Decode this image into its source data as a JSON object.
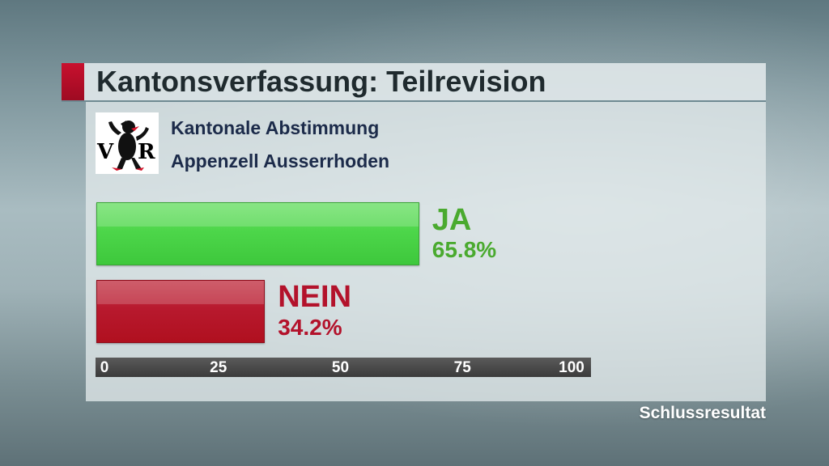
{
  "header": {
    "title": "Kantonsverfassung: Teilrevision"
  },
  "subtitle": {
    "line1": "Kantonale Abstimmung",
    "line2": "Appenzell Ausserrhoden"
  },
  "logo": {
    "letters_left": "V",
    "letters_right": "R",
    "icon": "bear-coat-of-arms-icon"
  },
  "chart_data": {
    "type": "bar",
    "orientation": "horizontal",
    "categories": [
      "JA",
      "NEIN"
    ],
    "values": [
      65.8,
      34.2
    ],
    "value_labels": [
      "65.8%",
      "34.2%"
    ],
    "xlim": [
      0,
      100
    ],
    "xticks": [
      0,
      25,
      50,
      75,
      100
    ],
    "colors": {
      "JA": "#4dd64a",
      "NEIN": "#b8192e"
    },
    "label_colors": {
      "JA": "#4aaa2f",
      "NEIN": "#b3122b"
    }
  },
  "footer": {
    "status": "Schlussresultat"
  }
}
